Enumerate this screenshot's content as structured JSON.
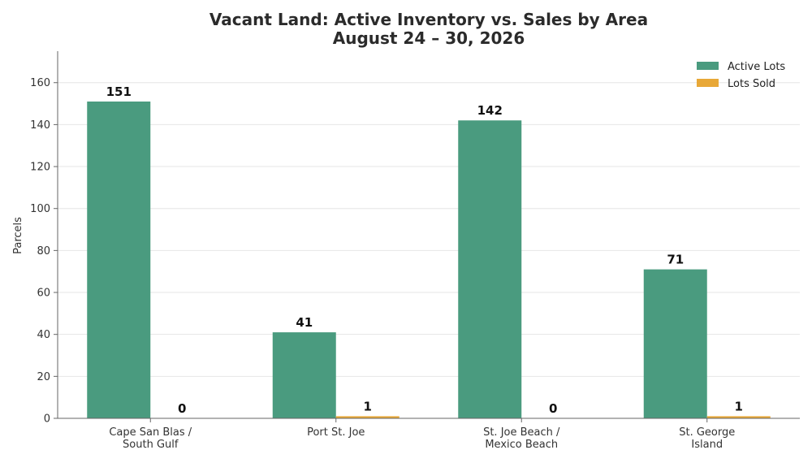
{
  "chart_data": {
    "type": "bar",
    "title_lines": [
      "Vacant Land: Active Inventory vs. Sales by Area",
      "August 24 – 30, 2026"
    ],
    "xlabel": "",
    "ylabel": "Parcels",
    "categories": [
      [
        "Cape San Blas /",
        "South Gulf"
      ],
      [
        "Port St. Joe"
      ],
      [
        "St. Joe Beach /",
        "Mexico Beach"
      ],
      [
        "St. George",
        "Island"
      ]
    ],
    "series": [
      {
        "name": "Active Lots",
        "color": "#4a9b7f",
        "values": [
          151,
          41,
          142,
          71
        ]
      },
      {
        "name": "Lots Sold",
        "color": "#e8a838",
        "values": [
          0,
          1,
          0,
          1
        ]
      }
    ],
    "ylim": [
      0,
      175
    ],
    "yticks": [
      0,
      20,
      40,
      60,
      80,
      100,
      120,
      140,
      160
    ],
    "grid": "horizontal",
    "legend_position": "top-right"
  }
}
